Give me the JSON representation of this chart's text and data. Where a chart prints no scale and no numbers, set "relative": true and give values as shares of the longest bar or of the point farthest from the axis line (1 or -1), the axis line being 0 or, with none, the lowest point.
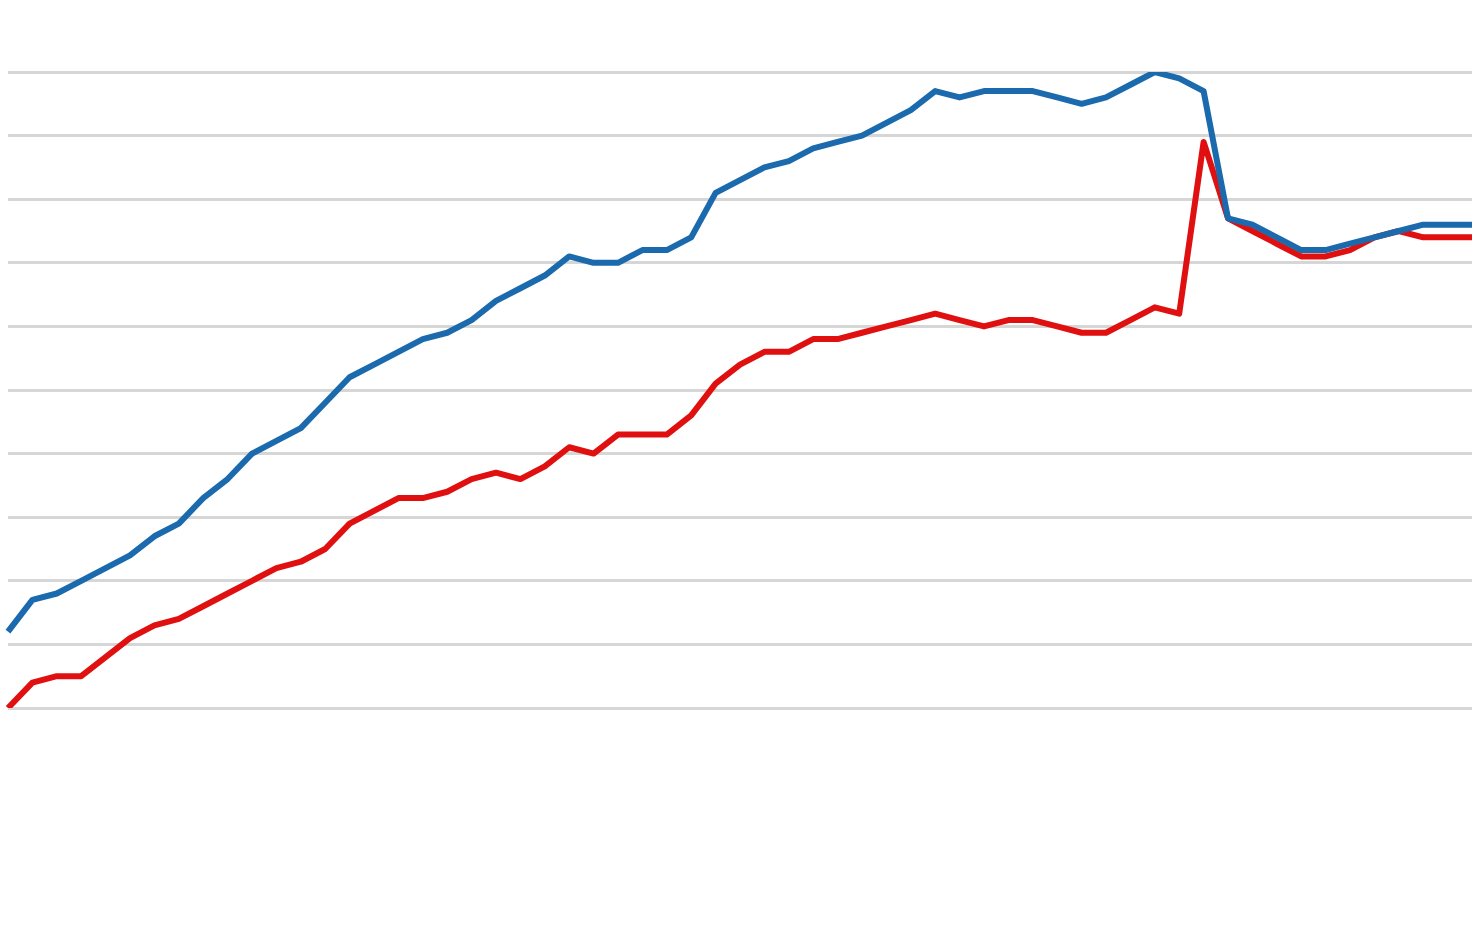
{
  "chart_data": {
    "type": "line",
    "relative": true,
    "grid": "y",
    "marker": "none",
    "line_style": "solid",
    "categories": [
      null,
      null,
      null,
      null,
      null,
      null,
      null,
      null,
      null,
      null,
      null,
      null,
      null,
      null,
      null,
      null,
      null,
      null,
      null,
      null,
      null,
      null,
      null,
      null,
      null,
      null,
      null,
      null,
      null,
      null,
      null,
      null,
      null,
      null,
      null,
      null,
      null,
      null,
      null,
      null,
      null,
      null,
      null,
      null,
      null,
      null,
      null,
      null,
      null,
      null,
      null,
      null,
      null,
      null,
      null,
      null,
      null,
      null,
      null,
      null,
      null
    ],
    "series": [
      {
        "color": "#1a6aad",
        "values": [
          0.12,
          0.17,
          0.18,
          0.2,
          0.22,
          0.24,
          0.27,
          0.29,
          0.33,
          0.36,
          0.4,
          0.42,
          0.44,
          0.48,
          0.52,
          0.54,
          0.56,
          0.58,
          0.59,
          0.61,
          0.64,
          0.66,
          0.68,
          0.71,
          0.7,
          0.7,
          0.72,
          0.72,
          0.74,
          0.81,
          0.83,
          0.85,
          0.86,
          0.88,
          0.89,
          0.9,
          0.92,
          0.94,
          0.97,
          0.96,
          0.97,
          0.97,
          0.97,
          0.96,
          0.95,
          0.96,
          0.98,
          1.0,
          0.99,
          0.97,
          0.77,
          0.76,
          0.74,
          0.72,
          0.72,
          0.73,
          0.74,
          0.75,
          0.76,
          0.76,
          0.76
        ]
      },
      {
        "color": "#e01010",
        "values": [
          0,
          0.04,
          0.05,
          0.05,
          0.08,
          0.11,
          0.13,
          0.14,
          0.16,
          0.18,
          0.2,
          0.22,
          0.23,
          0.25,
          0.29,
          0.31,
          0.33,
          0.33,
          0.34,
          0.36,
          0.37,
          0.36,
          0.38,
          0.41,
          0.4,
          0.43,
          0.43,
          0.43,
          0.46,
          0.51,
          0.54,
          0.56,
          0.56,
          0.58,
          0.58,
          0.59,
          0.6,
          0.61,
          0.62,
          0.61,
          0.6,
          0.61,
          0.61,
          0.6,
          0.59,
          0.59,
          0.61,
          0.63,
          0.62,
          0.89,
          0.77,
          0.75,
          0.73,
          0.71,
          0.71,
          0.72,
          0.74,
          0.75,
          0.74,
          0.74,
          0.74
        ]
      }
    ]
  }
}
